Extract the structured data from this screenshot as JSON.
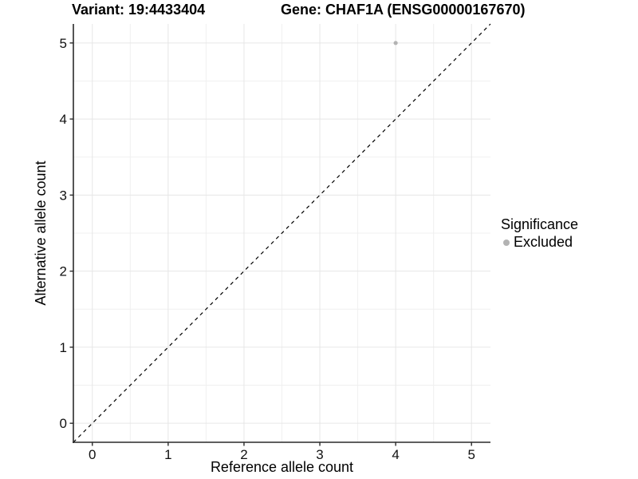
{
  "chart_data": {
    "type": "scatter",
    "titles": {
      "left": "Variant: 19:4433404",
      "right": "Gene: CHAF1A (ENSG00000167670)"
    },
    "xlabel": "Reference allele count",
    "ylabel": "Alternative allele count",
    "xlim": [
      -0.25,
      5.25
    ],
    "ylim": [
      -0.25,
      5.25
    ],
    "x_ticks": [
      0,
      1,
      2,
      3,
      4,
      5
    ],
    "y_ticks": [
      0,
      1,
      2,
      3,
      4,
      5
    ],
    "x_minor_ticks": [
      0.5,
      1.5,
      2.5,
      3.5,
      4.5
    ],
    "y_minor_ticks": [
      0.5,
      1.5,
      2.5,
      3.5,
      4.5
    ],
    "grid": true,
    "points": [
      {
        "x": 4,
        "y": 5,
        "series": "Excluded"
      }
    ],
    "identity_line": {
      "slope": 1,
      "intercept": 0,
      "style": "dashed",
      "color": "#000000"
    },
    "legend": {
      "title": "Significance",
      "position": "right",
      "items": [
        {
          "label": "Excluded",
          "color": "#b3b3b3"
        }
      ]
    },
    "colors": {
      "point": "#b3b3b3",
      "grid_major": "#e6e6e6",
      "grid_minor": "#f0f0f0",
      "axis_line": "#2a2a2a",
      "tick_text": "#111111",
      "background": "#ffffff"
    }
  }
}
